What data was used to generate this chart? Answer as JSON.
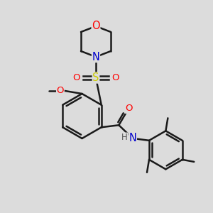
{
  "bg_color": "#dcdcdc",
  "bond_color": "#1a1a1a",
  "bond_width": 1.8,
  "atom_colors": {
    "O": "#ff0000",
    "N": "#0000cc",
    "S": "#cccc00",
    "C": "#1a1a1a",
    "H": "#555555"
  },
  "font_size": 9.5,
  "fig_size": [
    3.0,
    3.0
  ],
  "dpi": 100
}
